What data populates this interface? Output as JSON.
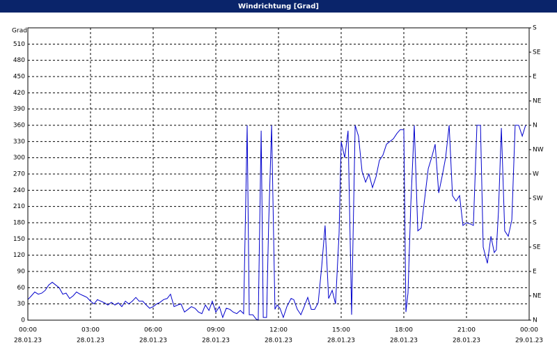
{
  "chart_data": {
    "type": "line",
    "title": "Windrichtung [Grad]",
    "ylabel": "Grad",
    "xlim": [
      0,
      24
    ],
    "xticks": [
      {
        "value": 0,
        "label": "00:00",
        "date": "28.01.23"
      },
      {
        "value": 3,
        "label": "03:00",
        "date": "28.01.23"
      },
      {
        "value": 6,
        "label": "06:00",
        "date": "28.01.23"
      },
      {
        "value": 9,
        "label": "09:00",
        "date": "28.01.23"
      },
      {
        "value": 12,
        "label": "12:00",
        "date": "28.01.23"
      },
      {
        "value": 15,
        "label": "15:00",
        "date": "28.01.23"
      },
      {
        "value": 18,
        "label": "18:00",
        "date": "28.01.23"
      },
      {
        "value": 21,
        "label": "21:00",
        "date": "28.01.23"
      },
      {
        "value": 24,
        "label": "00:00",
        "date": "29.01.23"
      }
    ],
    "ylim": [
      0,
      540
    ],
    "yticks": [
      0,
      30,
      60,
      90,
      120,
      150,
      180,
      210,
      240,
      270,
      300,
      330,
      360,
      390,
      420,
      450,
      480,
      510
    ],
    "y2lim": [
      0,
      540
    ],
    "y2ticks": [
      {
        "value": 0,
        "label": "N"
      },
      {
        "value": 45,
        "label": "NE"
      },
      {
        "value": 90,
        "label": "E"
      },
      {
        "value": 135,
        "label": "SE"
      },
      {
        "value": 180,
        "label": "S"
      },
      {
        "value": 225,
        "label": "SW"
      },
      {
        "value": 270,
        "label": "W"
      },
      {
        "value": 315,
        "label": "NW"
      },
      {
        "value": 360,
        "label": "N"
      },
      {
        "value": 405,
        "label": "NE"
      },
      {
        "value": 450,
        "label": "E"
      },
      {
        "value": 495,
        "label": "SE"
      },
      {
        "value": 540,
        "label": "S"
      }
    ],
    "grid": true,
    "series": [
      {
        "color": "#0000cc",
        "x": [
          0,
          0.17,
          0.33,
          0.5,
          0.67,
          0.83,
          1,
          1.17,
          1.33,
          1.5,
          1.67,
          1.83,
          2,
          2.17,
          2.33,
          2.5,
          2.67,
          2.83,
          3,
          3.17,
          3.33,
          3.5,
          3.67,
          3.83,
          4,
          4.17,
          4.33,
          4.5,
          4.67,
          4.83,
          5,
          5.17,
          5.33,
          5.5,
          5.67,
          5.83,
          6,
          6.17,
          6.33,
          6.5,
          6.67,
          6.83,
          7,
          7.17,
          7.33,
          7.5,
          7.67,
          7.83,
          8,
          8.17,
          8.33,
          8.5,
          8.67,
          8.83,
          9,
          9.17,
          9.33,
          9.5,
          9.67,
          9.83,
          10,
          10.17,
          10.33,
          10.5,
          10.6,
          10.77,
          10.93,
          11.03,
          11.17,
          11.27,
          11.43,
          11.53,
          11.67,
          11.83,
          11.93,
          12.07,
          12.23,
          12.4,
          12.6,
          12.73,
          12.9,
          13.07,
          13.23,
          13.4,
          13.57,
          13.73,
          13.9,
          14.07,
          14.23,
          14.4,
          14.57,
          14.73,
          14.9,
          15,
          15.17,
          15.33,
          15.5,
          15.67,
          15.83,
          16,
          16.17,
          16.33,
          16.5,
          16.67,
          16.83,
          17,
          17.17,
          17.33,
          17.5,
          17.67,
          17.83,
          18,
          18.1,
          18.2,
          18.33,
          18.5,
          18.67,
          18.83,
          19,
          19.17,
          19.33,
          19.5,
          19.67,
          19.83,
          20,
          20.17,
          20.33,
          20.5,
          20.67,
          20.83,
          21,
          21.17,
          21.33,
          21.5,
          21.67,
          21.8,
          22,
          22.17,
          22.33,
          22.43,
          22.53,
          22.67,
          22.83,
          23,
          23.17,
          23.33,
          23.5,
          23.67,
          23.83
        ],
        "values": [
          38,
          45,
          52,
          48,
          50,
          55,
          65,
          70,
          65,
          60,
          48,
          50,
          40,
          45,
          52,
          48,
          45,
          42,
          35,
          30,
          38,
          35,
          32,
          28,
          33,
          28,
          32,
          25,
          35,
          30,
          35,
          42,
          35,
          35,
          28,
          22,
          25,
          30,
          33,
          38,
          40,
          48,
          25,
          28,
          30,
          15,
          20,
          25,
          22,
          15,
          12,
          28,
          18,
          35,
          15,
          25,
          5,
          22,
          20,
          15,
          12,
          18,
          12,
          360,
          10,
          10,
          2,
          0,
          350,
          5,
          5,
          180,
          360,
          20,
          28,
          22,
          5,
          25,
          40,
          38,
          20,
          10,
          25,
          42,
          20,
          20,
          32,
          100,
          175,
          40,
          55,
          30,
          160,
          330,
          300,
          350,
          10,
          360,
          340,
          275,
          255,
          270,
          245,
          265,
          295,
          305,
          325,
          330,
          335,
          345,
          352,
          352,
          15,
          50,
          210,
          360,
          165,
          170,
          225,
          280,
          300,
          325,
          235,
          265,
          300,
          360,
          230,
          220,
          230,
          175,
          180,
          178,
          175,
          360,
          360,
          135,
          105,
          155,
          125,
          130,
          200,
          355,
          165,
          155,
          185,
          360,
          360,
          340,
          360
        ]
      }
    ]
  }
}
